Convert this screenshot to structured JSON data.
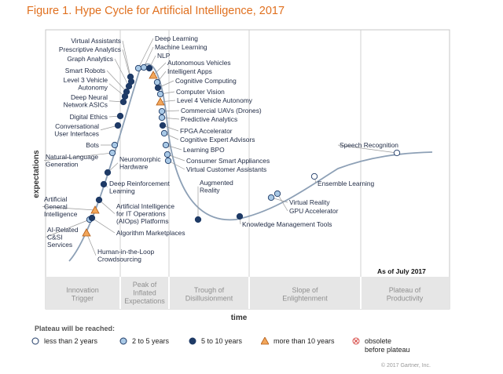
{
  "figure": {
    "title": "Figure 1. Hype Cycle for Artificial Intelligence, 2017",
    "copyright": "© 2017 Gartner, Inc."
  },
  "chart_data": {
    "type": "scatter",
    "xlabel": "time",
    "ylabel": "expectations",
    "as_of": "As of July 2017",
    "phases": [
      "Innovation Trigger",
      "Peak of Inflated Expectations",
      "Trough of Disillusionment",
      "Slope of Enlightenment",
      "Plateau of Productivity"
    ],
    "legend_title": "Plateau will be reached:",
    "legend": [
      {
        "key": "lt2",
        "label": "less than 2 years",
        "color": "#ffffff"
      },
      {
        "key": "2to5",
        "label": "2 to 5 years",
        "color": "#a9c9e6"
      },
      {
        "key": "5to10",
        "label": "5 to 10 years",
        "color": "#1e3a66"
      },
      {
        "key": "gt10",
        "label": "more than 10 years",
        "color": "#f2a65a"
      },
      {
        "key": "obs",
        "label": "obsolete before plateau",
        "color": "#d9534f"
      }
    ],
    "technologies": [
      {
        "name": "Virtual Assistants",
        "plateau": "5to10"
      },
      {
        "name": "Prescriptive Analytics",
        "plateau": "5to10"
      },
      {
        "name": "Graph Analytics",
        "plateau": "5to10"
      },
      {
        "name": "Smart Robots",
        "plateau": "5to10"
      },
      {
        "name": "Level 3 Vehicle Autonomy",
        "plateau": "5to10"
      },
      {
        "name": "Deep Neural Network ASICs",
        "plateau": "5to10"
      },
      {
        "name": "Digital Ethics",
        "plateau": "5to10"
      },
      {
        "name": "Conversational User Interfaces",
        "plateau": "5to10"
      },
      {
        "name": "Bots",
        "plateau": "2to5"
      },
      {
        "name": "Natural-Language Generation",
        "plateau": "2to5"
      },
      {
        "name": "Neuromorphic Hardware",
        "plateau": "5to10"
      },
      {
        "name": "Deep Reinforcement Learning",
        "plateau": "5to10"
      },
      {
        "name": "Artificial General Intelligence",
        "plateau": "gt10"
      },
      {
        "name": "Artificial Intelligence for IT Operations (AIOps) Platforms",
        "plateau": "5to10"
      },
      {
        "name": "AI-Related C&SI Services",
        "plateau": "2to5"
      },
      {
        "name": "Algorithm Marketplaces",
        "plateau": "5to10"
      },
      {
        "name": "Human-in-the-Loop Crowdsourcing",
        "plateau": "gt10"
      },
      {
        "name": "Deep Learning",
        "plateau": "2to5"
      },
      {
        "name": "Machine Learning",
        "plateau": "2to5"
      },
      {
        "name": "NLP",
        "plateau": "5to10"
      },
      {
        "name": "Autonomous Vehicles",
        "plateau": "gt10"
      },
      {
        "name": "Intelligent Apps",
        "plateau": "2to5"
      },
      {
        "name": "Cognitive Computing",
        "plateau": "5to10"
      },
      {
        "name": "Computer Vision",
        "plateau": "2to5"
      },
      {
        "name": "Level 4 Vehicle Autonomy",
        "plateau": "gt10"
      },
      {
        "name": "Commercial UAVs (Drones)",
        "plateau": "2to5"
      },
      {
        "name": "Predictive Analytics",
        "plateau": "2to5"
      },
      {
        "name": "FPGA Accelerator",
        "plateau": "5to10"
      },
      {
        "name": "Cognitive Expert Advisors",
        "plateau": "2to5"
      },
      {
        "name": "Learning BPO",
        "plateau": "2to5"
      },
      {
        "name": "Consumer Smart Appliances",
        "plateau": "2to5"
      },
      {
        "name": "Virtual Customer Assistants",
        "plateau": "2to5"
      },
      {
        "name": "Augmented Reality",
        "plateau": "5to10"
      },
      {
        "name": "Knowledge Management Tools",
        "plateau": "5to10"
      },
      {
        "name": "Virtual Reality",
        "plateau": "2to5"
      },
      {
        "name": "GPU Accelerator",
        "plateau": "2to5"
      },
      {
        "name": "Ensemble Learning",
        "plateau": "lt2"
      },
      {
        "name": "Speech Recognition",
        "plateau": "lt2"
      }
    ]
  }
}
